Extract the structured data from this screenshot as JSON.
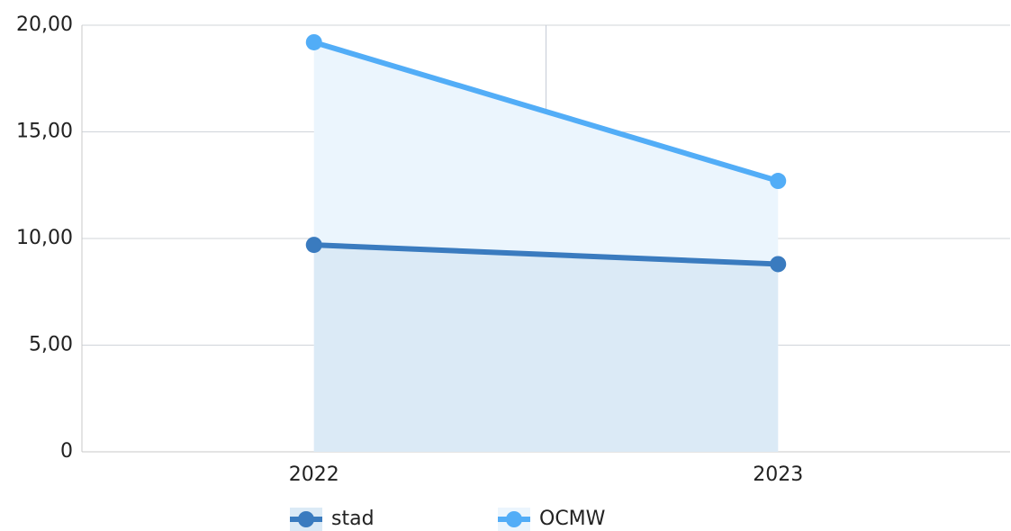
{
  "chart_data": {
    "type": "line",
    "categories": [
      "2022",
      "2023"
    ],
    "series": [
      {
        "name": "stad",
        "color": "#3a7bbf",
        "area_color": "#dbeaf6",
        "values": [
          9.7,
          8.8
        ]
      },
      {
        "name": "OCMW",
        "color": "#52adf7",
        "area_color": "#ebf5fd",
        "values": [
          19.2,
          12.7
        ]
      }
    ],
    "ylim": [
      0,
      20
    ],
    "yticks": [
      0,
      {
        "value": 5,
        "label": "5,00"
      },
      {
        "value": 10,
        "label": "10,00"
      },
      {
        "value": 15,
        "label": "15,00"
      },
      {
        "value": 20,
        "label": "20,00"
      }
    ],
    "grid": true,
    "area": true,
    "legend": "bottom"
  }
}
